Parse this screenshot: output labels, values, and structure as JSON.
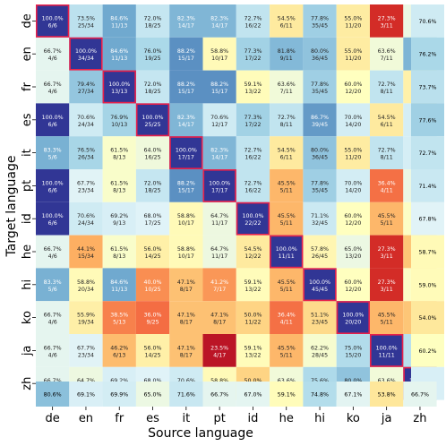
{
  "chart_data": {
    "type": "heatmap",
    "xlabel": "Source language",
    "ylabel": "Target language",
    "languages": [
      "de",
      "en",
      "fr",
      "es",
      "it",
      "pt",
      "id",
      "he",
      "hi",
      "ko",
      "ja",
      "zh"
    ],
    "cells": [
      [
        [
          "100.0%",
          "6/6"
        ],
        [
          "73.5%",
          "25/34"
        ],
        [
          "84.6%",
          "11/13"
        ],
        [
          "72.0%",
          "18/25"
        ],
        [
          "82.3%",
          "14/17"
        ],
        [
          "82.3%",
          "14/17"
        ],
        [
          "72.7%",
          "16/22"
        ],
        [
          "54.5%",
          "6/11"
        ],
        [
          "77.8%",
          "35/45"
        ],
        [
          "55.0%",
          "11/20"
        ],
        [
          "27.3%",
          "3/11"
        ],
        [
          "65.2%",
          "15/23"
        ]
      ],
      [
        [
          "66.7%",
          "4/6"
        ],
        [
          "100.0%",
          "34/34"
        ],
        [
          "84.6%",
          "11/13"
        ],
        [
          "76.0%",
          "19/25"
        ],
        [
          "88.2%",
          "15/17"
        ],
        [
          "58.8%",
          "10/17"
        ],
        [
          "77.3%",
          "17/22"
        ],
        [
          "81.8%",
          "9/11"
        ],
        [
          "80.0%",
          "36/45"
        ],
        [
          "55.0%",
          "11/20"
        ],
        [
          "63.6%",
          "7/11"
        ],
        [
          "82.6%",
          "19/23"
        ]
      ],
      [
        [
          "66.7%",
          "4/6"
        ],
        [
          "79.4%",
          "27/34"
        ],
        [
          "100.0%",
          "13/13"
        ],
        [
          "72.0%",
          "18/25"
        ],
        [
          "88.2%",
          "15/17"
        ],
        [
          "88.2%",
          "15/17"
        ],
        [
          "59.1%",
          "13/22"
        ],
        [
          "63.6%",
          "7/11"
        ],
        [
          "77.8%",
          "35/45"
        ],
        [
          "60.0%",
          "12/20"
        ],
        [
          "72.7%",
          "8/11"
        ],
        [
          "56.5%",
          "13/23"
        ]
      ],
      [
        [
          "100.0%",
          "6/6"
        ],
        [
          "70.6%",
          "24/34"
        ],
        [
          "76.9%",
          "10/13"
        ],
        [
          "100.0%",
          "25/25"
        ],
        [
          "82.3%",
          "14/17"
        ],
        [
          "70.6%",
          "12/17"
        ],
        [
          "77.3%",
          "17/22"
        ],
        [
          "72.7%",
          "8/11"
        ],
        [
          "86.7%",
          "39/45"
        ],
        [
          "70.0%",
          "14/20"
        ],
        [
          "54.5%",
          "6/11"
        ],
        [
          "69.6%",
          "16/23"
        ]
      ],
      [
        [
          "83.3%",
          "5/6"
        ],
        [
          "76.5%",
          "26/34"
        ],
        [
          "61.5%",
          "8/13"
        ],
        [
          "64.0%",
          "16/25"
        ],
        [
          "100.0%",
          "17/17"
        ],
        [
          "82.3%",
          "14/17"
        ],
        [
          "72.7%",
          "16/22"
        ],
        [
          "54.5%",
          "6/11"
        ],
        [
          "80.0%",
          "36/45"
        ],
        [
          "55.0%",
          "11/20"
        ],
        [
          "72.7%",
          "8/11"
        ],
        [
          "69.6%",
          "16/23"
        ]
      ],
      [
        [
          "100.0%",
          "6/6"
        ],
        [
          "67.7%",
          "23/34"
        ],
        [
          "61.5%",
          "8/13"
        ],
        [
          "72.0%",
          "18/25"
        ],
        [
          "88.2%",
          "15/17"
        ],
        [
          "100.0%",
          "17/17"
        ],
        [
          "72.7%",
          "16/22"
        ],
        [
          "45.5%",
          "5/11"
        ],
        [
          "77.8%",
          "35/45"
        ],
        [
          "70.0%",
          "14/20"
        ],
        [
          "36.4%",
          "4/11"
        ],
        [
          "65.2%",
          "15/23"
        ]
      ],
      [
        [
          "100.0%",
          "6/6"
        ],
        [
          "70.6%",
          "24/34"
        ],
        [
          "69.2%",
          "9/13"
        ],
        [
          "68.0%",
          "17/25"
        ],
        [
          "58.8%",
          "10/17"
        ],
        [
          "64.7%",
          "11/17"
        ],
        [
          "100.0%",
          "22/22"
        ],
        [
          "45.5%",
          "5/11"
        ],
        [
          "71.1%",
          "32/45"
        ],
        [
          "60.0%",
          "12/20"
        ],
        [
          "45.5%",
          "5/11"
        ],
        [
          "60.9%",
          "14/23"
        ]
      ],
      [
        [
          "66.7%",
          "4/6"
        ],
        [
          "44.1%",
          "15/34"
        ],
        [
          "61.5%",
          "8/13"
        ],
        [
          "56.0%",
          "14/25"
        ],
        [
          "58.8%",
          "10/17"
        ],
        [
          "64.7%",
          "11/17"
        ],
        [
          "54.5%",
          "12/22"
        ],
        [
          "100.0%",
          "11/11"
        ],
        [
          "57.8%",
          "26/45"
        ],
        [
          "65.0%",
          "13/20"
        ],
        [
          "27.3%",
          "3/11"
        ],
        [
          "47.8%",
          "11/23"
        ]
      ],
      [
        [
          "83.3%",
          "5/6"
        ],
        [
          "58.8%",
          "20/34"
        ],
        [
          "84.6%",
          "11/13"
        ],
        [
          "40.0%",
          "10/25"
        ],
        [
          "47.1%",
          "8/17"
        ],
        [
          "41.2%",
          "7/17"
        ],
        [
          "59.1%",
          "13/22"
        ],
        [
          "45.5%",
          "5/11"
        ],
        [
          "100.0%",
          "45/45"
        ],
        [
          "60.0%",
          "12/20"
        ],
        [
          "27.3%",
          "3/11"
        ],
        [
          "60.9%",
          "14/23"
        ]
      ],
      [
        [
          "66.7%",
          "4/6"
        ],
        [
          "55.9%",
          "19/34"
        ],
        [
          "38.5%",
          "5/13"
        ],
        [
          "36.0%",
          "9/25"
        ],
        [
          "47.1%",
          "8/17"
        ],
        [
          "47.1%",
          "8/17"
        ],
        [
          "50.0%",
          "11/22"
        ],
        [
          "36.4%",
          "4/11"
        ],
        [
          "51.1%",
          "23/45"
        ],
        [
          "100.0%",
          "20/20"
        ],
        [
          "45.5%",
          "5/11"
        ],
        [
          "47.8%",
          "11/23"
        ]
      ],
      [
        [
          "66.7%",
          "4/6"
        ],
        [
          "67.7%",
          "23/34"
        ],
        [
          "46.2%",
          "6/13"
        ],
        [
          "56.0%",
          "14/25"
        ],
        [
          "47.1%",
          "8/17"
        ],
        [
          "23.5%",
          "4/17"
        ],
        [
          "59.1%",
          "13/22"
        ],
        [
          "45.5%",
          "5/11"
        ],
        [
          "62.2%",
          "28/45"
        ],
        [
          "75.0%",
          "15/20"
        ],
        [
          "100.0%",
          "11/11"
        ],
        [
          "73.9%",
          "17/23"
        ]
      ],
      [
        [
          "66.7%",
          "4/6"
        ],
        [
          "64.7%",
          "22/34"
        ],
        [
          "69.2%",
          "9/13"
        ],
        [
          "68.0%",
          "17/25"
        ],
        [
          "70.6%",
          "12/17"
        ],
        [
          "58.8%",
          "10/17"
        ],
        [
          "50.0%",
          "11/22"
        ],
        [
          "63.6%",
          "7/11"
        ],
        [
          "75.6%",
          "34/45"
        ],
        [
          "80.0%",
          "16/20"
        ],
        [
          "63.6%",
          "7/11"
        ],
        [
          "100.0%",
          "23/23"
        ]
      ]
    ],
    "row_totals": [
      "70.6%",
      "76.2%",
      "73.7%",
      "77.6%",
      "72.7%",
      "71.4%",
      "67.8%",
      "58.7%",
      "59.0%",
      "54.0%",
      "60.2%",
      "69.2%"
    ],
    "col_totals": [
      "80.6%",
      "69.1%",
      "69.9%",
      "65.0%",
      "71.6%",
      "66.7%",
      "67.0%",
      "59.1%",
      "74.8%",
      "67.1%",
      "53.8%",
      "66.7%"
    ],
    "colormap": "RdYlBu",
    "value_range": [
      20,
      100
    ]
  }
}
